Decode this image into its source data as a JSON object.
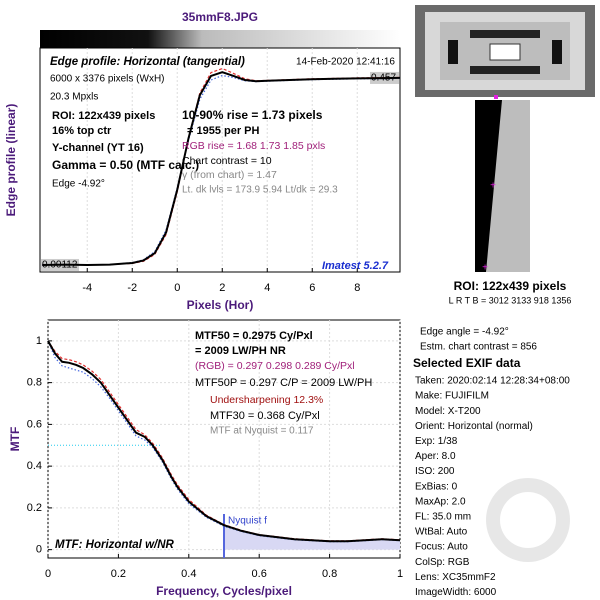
{
  "title": "35mmF8.JPG",
  "chart_data": [
    {
      "type": "line",
      "title": "Edge profile: Horizontal (tangential)",
      "date": "14-Feb-2020 12:41:16",
      "xlabel": "Pixels (Hor)",
      "ylabel": "Edge profile (linear)",
      "x": [
        -6,
        -5,
        -4,
        -3,
        -2,
        -1.5,
        -1,
        -0.5,
        0,
        0.5,
        1,
        1.5,
        2,
        2.5,
        3,
        3.5,
        4,
        5,
        6,
        7,
        8,
        9.9
      ],
      "series": [
        {
          "color": "#e03030",
          "values": [
            0.001,
            0.002,
            0.001,
            0.002,
            0.005,
            0.01,
            0.027,
            0.075,
            0.18,
            0.31,
            0.42,
            0.47,
            0.48,
            0.468,
            0.455,
            0.45,
            0.451,
            0.453,
            0.455,
            0.456,
            0.457,
            0.458
          ]
        },
        {
          "color": "#4466dd",
          "values": [
            0.001,
            0.002,
            0.001,
            0.002,
            0.007,
            0.014,
            0.034,
            0.086,
            0.19,
            0.305,
            0.405,
            0.452,
            0.463,
            0.458,
            0.45,
            0.448,
            0.449,
            0.451,
            0.453,
            0.454,
            0.455,
            0.456
          ]
        },
        {
          "color": "#000000",
          "values": [
            0.001,
            0.002,
            0.001,
            0.002,
            0.006,
            0.012,
            0.03,
            0.08,
            0.185,
            0.31,
            0.415,
            0.462,
            0.471,
            0.462,
            0.452,
            0.449,
            0.45,
            0.452,
            0.454,
            0.455,
            0.456,
            0.457
          ]
        }
      ],
      "xlim": [
        -6.1,
        9.9
      ],
      "ylim": [
        -0.016,
        0.53
      ],
      "xticks": [
        -4,
        -2,
        0,
        2,
        4,
        6,
        8
      ],
      "level_labels": [
        0.00112,
        0.457
      ],
      "grid": true,
      "info_left": [
        "6000 x 3376 pixels (WxH)",
        "20.3 Mpxls",
        "ROI:  122x439 pixels",
        "16% top ctr",
        "Y-channel  (YT 16)",
        "Gamma = 0.50 (MTF calc.)",
        "Edge  -4.92°"
      ],
      "info_mid": [
        "10-90% rise = 1.73 pixels",
        "=  1955 per PH",
        "RGB rise =  1.68   1.73   1.85 pxls",
        "Chart contrast = 10",
        "γ (from chart) = 1.47",
        "Lt. dk lvls = 173.9  5.94  Lt/dk = 29.3"
      ],
      "version": "Imatest 5.2.7"
    },
    {
      "type": "line",
      "title": "MTF: Horizontal w/NR",
      "xlabel": "Frequency, Cycles/pixel",
      "ylabel": "MTF",
      "x": [
        0,
        0.02,
        0.04,
        0.06,
        0.08,
        0.1,
        0.125,
        0.15,
        0.175,
        0.2,
        0.225,
        0.25,
        0.275,
        0.2975,
        0.325,
        0.35,
        0.368,
        0.4,
        0.45,
        0.5,
        0.55,
        0.6,
        0.65,
        0.7,
        0.75,
        0.8,
        0.85,
        0.9,
        0.95,
        1
      ],
      "series": [
        {
          "color": "#e03030",
          "values": [
            1,
            0.95,
            0.915,
            0.91,
            0.9,
            0.885,
            0.855,
            0.815,
            0.755,
            0.695,
            0.635,
            0.575,
            0.55,
            0.51,
            0.44,
            0.36,
            0.31,
            0.24,
            0.165,
            0.12,
            0.092,
            0.072,
            0.062,
            0.052,
            0.047,
            0.042,
            0.042,
            0.047,
            0.052,
            0.047
          ]
        },
        {
          "color": "#4466dd",
          "values": [
            1,
            0.92,
            0.88,
            0.87,
            0.86,
            0.85,
            0.82,
            0.78,
            0.725,
            0.665,
            0.605,
            0.545,
            0.525,
            0.49,
            0.42,
            0.34,
            0.29,
            0.22,
            0.155,
            0.112,
            0.087,
            0.067,
            0.057,
            0.047,
            0.043,
            0.038,
            0.038,
            0.043,
            0.048,
            0.043
          ]
        },
        {
          "color": "#000000",
          "values": [
            1,
            0.94,
            0.9,
            0.895,
            0.885,
            0.87,
            0.84,
            0.8,
            0.74,
            0.68,
            0.62,
            0.56,
            0.54,
            0.5,
            0.43,
            0.35,
            0.3,
            0.23,
            0.16,
            0.117,
            0.09,
            0.07,
            0.06,
            0.05,
            0.045,
            0.04,
            0.04,
            0.045,
            0.05,
            0.045
          ]
        }
      ],
      "xlim": [
        0,
        1
      ],
      "ylim": [
        -0.04,
        1.1
      ],
      "xticks": [
        0,
        0.2,
        0.4,
        0.6,
        0.8,
        1
      ],
      "yticks": [
        0,
        0.2,
        0.4,
        0.6,
        0.8,
        1
      ],
      "grid": true,
      "reference_y": 0.5,
      "nyquist": 0.5,
      "nyquist_label": "Nyquist f",
      "info": [
        "MTF50 = 0.2975 Cy/Pxl",
        "= 2009 LW/PH  NR",
        "(RGB) = 0.297  0.298  0.289 Cy/Pxl",
        "MTF50P = 0.297 C/P = 2009 LW/PH",
        "Undersharpening 12.3%",
        "MTF30 = 0.368 Cy/Pxl",
        "MTF at Nyquist = 0.117"
      ]
    }
  ],
  "roi": {
    "title": "ROI:  122x439 pixels",
    "coords": "L R  T B = 3012 3133  918 1356"
  },
  "side_info": [
    "Edge angle = -4.92°",
    "Estm. chart contrast = 856"
  ],
  "exif": {
    "title": "Selected EXIF data",
    "lines": [
      "Taken: 2020:02:14 12:28:34+08:00",
      "Make:  FUJIFILM",
      "Model:  X-T200",
      "Orient: Horizontal (normal)",
      "Exp:  1/38",
      "Aper:  8.0",
      "ISO:  200",
      "ExBias: 0",
      "MaxAp: 2.0",
      "FL:  35.0 mm",
      "WtBal: Auto",
      "Focus: Auto",
      "ColSp: RGB",
      "Lens: XC35mmF2",
      "ImageWidth:  6000"
    ]
  }
}
